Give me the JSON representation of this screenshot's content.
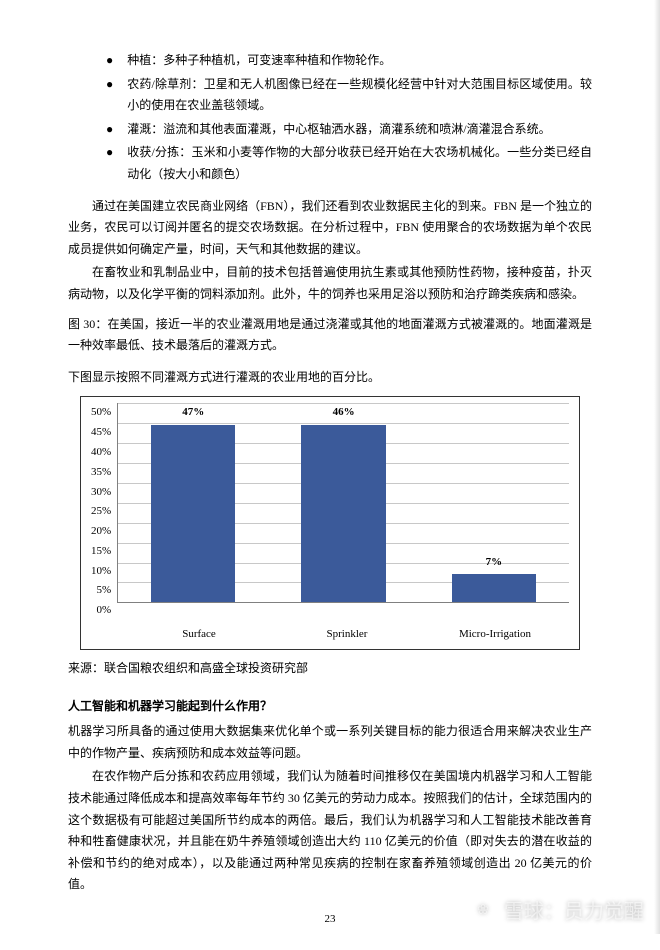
{
  "bullets": [
    {
      "text": "种植：多种子种植机，可变速率种植和作物轮作。"
    },
    {
      "text": "农药/除草剂：卫星和无人机图像已经在一些规模化经营中针对大范围目标区域使用。较小的使用在农业盖毯领域。"
    },
    {
      "text": "灌溉：溢流和其他表面灌溉，中心枢轴洒水器，滴灌系统和喷淋/滴灌混合系统。"
    },
    {
      "text": "收获/分拣：玉米和小麦等作物的大部分收获已经开始在大农场机械化。一些分类已经自动化（按大小和颜色）"
    }
  ],
  "para1": "通过在美国建立农民商业网络（FBN），我们还看到农业数据民主化的到来。FBN 是一个独立的业务，农民可以订阅并匿名的提交农场数据。在分析过程中，FBN 使用聚合的农场数据为单个农民成员提供如何确定产量，时间，天气和其他数据的建议。",
  "para2": "在畜牧业和乳制品业中，目前的技术包括普遍使用抗生素或其他预防性药物，接种疫苗，扑灭病动物，以及化学平衡的饲料添加剂。此外，牛的饲养也采用足浴以预防和治疗蹄类疾病和感染。",
  "figCaption": "图 30：在美国，接近一半的农业灌溉用地是通过浇灌或其他的地面灌溉方式被灌溉的。地面灌溉是一种效率最低、技术最落后的灌溉方式。",
  "figSub": "下图显示按照不同灌溉方式进行灌溉的农业用地的百分比。",
  "chart": {
    "type": "bar",
    "y_ticks": [
      "50%",
      "45%",
      "40%",
      "35%",
      "30%",
      "25%",
      "20%",
      "15%",
      "10%",
      "5%",
      "0%"
    ],
    "y_max": 50,
    "grid_color": "#c8c8c8",
    "axis_color": "#808080",
    "bar_color": "#3b5a9a",
    "background_color": "#ffffff",
    "label_fontsize": 11,
    "series": [
      {
        "category": "Surface",
        "value": 47,
        "label": "47%"
      },
      {
        "category": "Sprinkler",
        "value": 46,
        "label": "46%"
      },
      {
        "category": "Micro-Irrigation",
        "value": 7,
        "label": "7%"
      }
    ]
  },
  "source": "来源：联合国粮农组织和高盛全球投资研究部",
  "sectionHead": "人工智能和机器学习能起到什么作用？",
  "para3": "机器学习所具备的通过使用大数据集来优化单个或一系列关键目标的能力很适合用来解决农业生产中的作物产量、疾病预防和成本效益等问题。",
  "para4": "在农作物产后分拣和农药应用领域，我们认为随着时间推移仅在美国境内机器学习和人工智能技术能通过降低成本和提高效率每年节约 30 亿美元的劳动力成本。按照我们的估计，全球范围内的这个数据极有可能超过美国所节约成本的两倍。最后，我们认为机器学习和人工智能技术能改善育种和牲畜健康状况，并且能在奶牛养殖领域创造出大约 110 亿美元的价值（即对失去的潜在收益的补偿和节约的绝对成本），以及能通过两种常见疾病的控制在家畜养殖领域创造出 20 亿美元的价值。",
  "pageNum": "23",
  "watermark": {
    "logo": "❀",
    "text": "雪球：员力觉醒"
  }
}
